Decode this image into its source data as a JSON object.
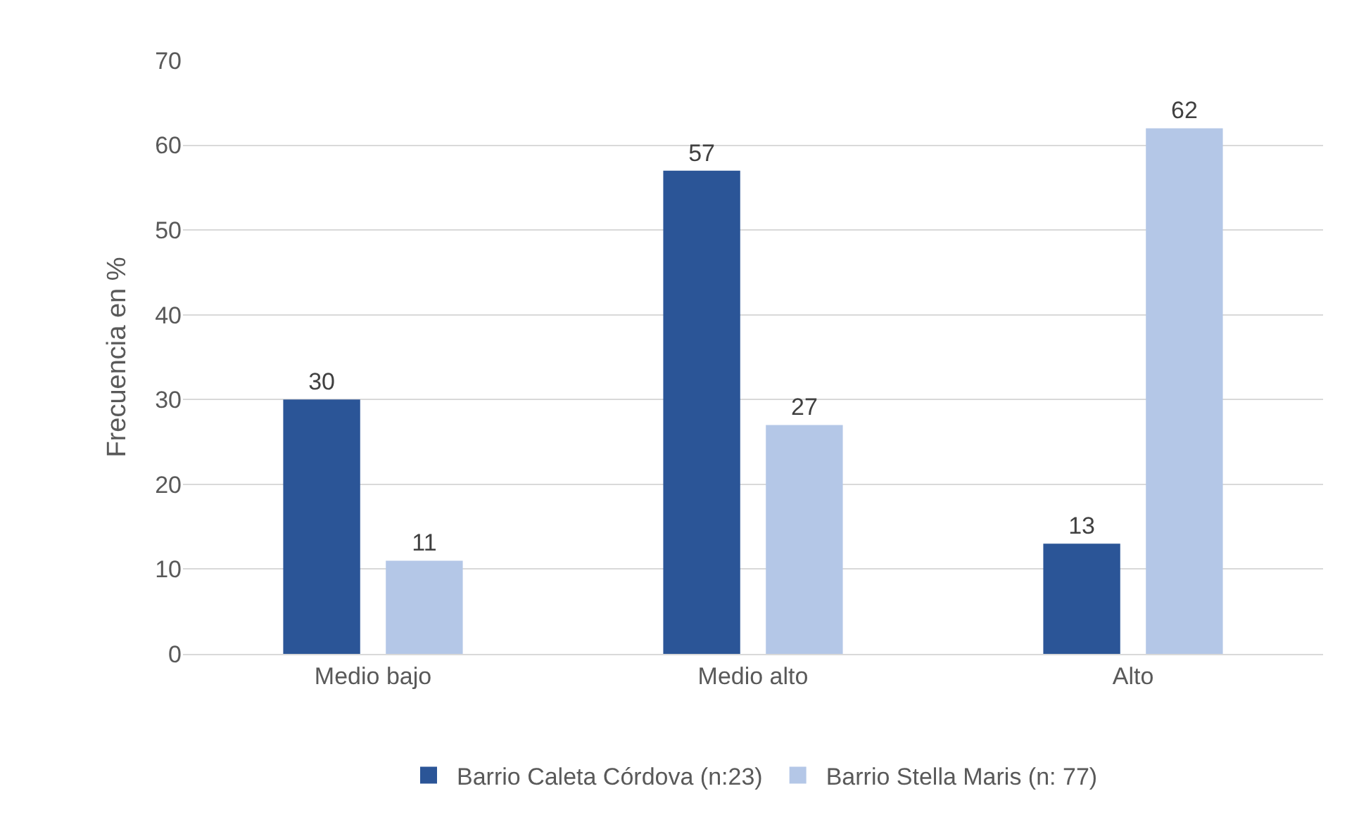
{
  "chart_data": {
    "type": "bar",
    "ylabel": "Frecuencia en %",
    "categories": [
      "Medio bajo",
      "Medio alto",
      "Alto"
    ],
    "series": [
      {
        "name": "Barrio Caleta Córdova (n:23)",
        "color": "#2b5597",
        "values": [
          30,
          57,
          13
        ]
      },
      {
        "name": "Barrio Stella Maris (n: 77)",
        "color": "#b4c7e7",
        "values": [
          11,
          27,
          62
        ]
      }
    ],
    "ylim": [
      0,
      70
    ],
    "yticks": [
      0,
      10,
      20,
      30,
      40,
      50,
      60,
      70
    ],
    "grid": "y",
    "legend": "bottom",
    "data_labels": true
  }
}
